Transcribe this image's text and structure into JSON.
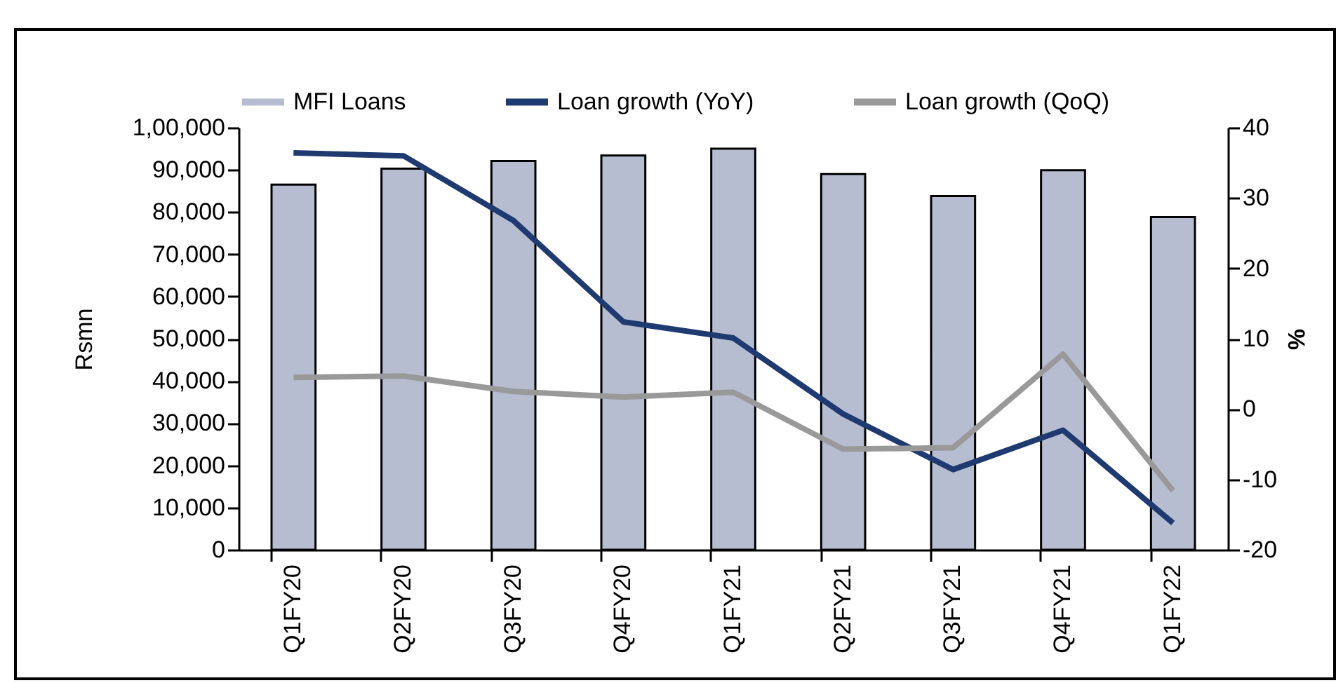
{
  "chart_data": {
    "type": "bar",
    "ylabel": "Rsmn",
    "y2label": "%",
    "categories": [
      "Q1FY20",
      "Q2FY20",
      "Q3FY20",
      "Q4FY20",
      "Q1FY21",
      "Q2FY21",
      "Q3FY21",
      "Q4FY21",
      "Q1FY22"
    ],
    "series": [
      {
        "name": "MFI Loans",
        "color": "#b6bdd1",
        "values": [
          86500,
          90300,
          92100,
          93400,
          95000,
          89000,
          83800,
          89900,
          78800
        ]
      },
      {
        "name": "Loan growth (YoY)",
        "type": "line",
        "axis": "y2",
        "color": "#1f3a70",
        "values": [
          36.4,
          36.0,
          26.8,
          12.4,
          10.1,
          -0.7,
          -8.6,
          -3.0,
          -16.2
        ]
      },
      {
        "name": "Loan growth (QoQ)",
        "type": "line",
        "axis": "y2",
        "color": "#999999",
        "values": [
          4.5,
          4.7,
          2.5,
          1.7,
          2.4,
          -5.7,
          -5.5,
          7.8,
          -11.6
        ]
      }
    ],
    "ylim": [
      0,
      100000
    ],
    "yticks": [
      0,
      "10,000",
      "20,000",
      "30,000",
      "40,000",
      "50,000",
      "60,000",
      "70,000",
      "80,000",
      "90,000",
      {
        "value": 100000,
        "label": "1,00,000"
      }
    ],
    "y2lim": [
      -20,
      40
    ],
    "y2ticks": [
      -20,
      -10,
      0,
      10,
      20,
      30,
      40
    ],
    "legend": "top",
    "grid": false
  }
}
